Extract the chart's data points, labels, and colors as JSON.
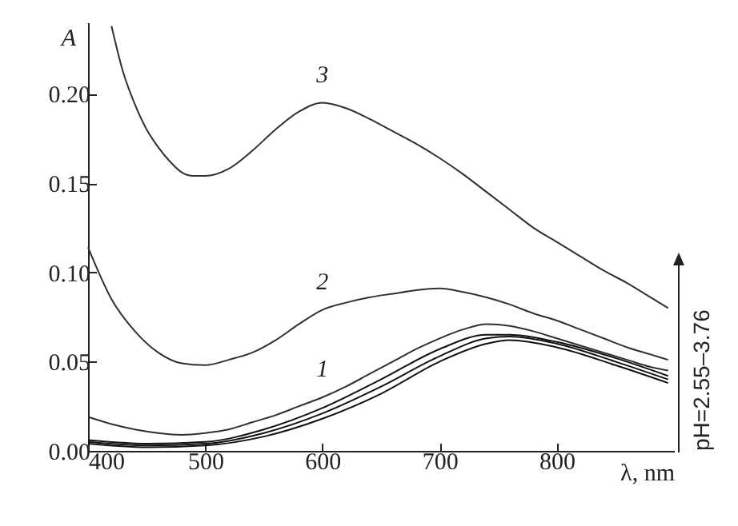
{
  "chart_data": {
    "type": "line",
    "xlabel": "λ, nm",
    "ylabel": "A",
    "xlim": [
      400,
      900
    ],
    "xticks": [
      400,
      500,
      600,
      700,
      800
    ],
    "ylim": [
      0,
      0.24
    ],
    "yticks": [
      {
        "value": 0,
        "label": "0.00"
      },
      0.05,
      {
        "value": 0.1,
        "label": "0.10"
      },
      0.15,
      {
        "value": 0.2,
        "label": "0.20"
      }
    ],
    "grid": false,
    "marker": "none",
    "line_style": "solid",
    "annotations": [
      "pH=2.55–3.76"
    ],
    "series": [
      {
        "name": "1",
        "color": "#303030",
        "x": [
          400,
          420,
          440,
          460,
          480,
          500,
          520,
          540,
          560,
          580,
          600,
          620,
          640,
          660,
          680,
          700,
          720,
          740,
          760,
          780,
          800,
          820,
          840,
          860,
          880,
          895
        ],
        "values": [
          0.019,
          0.015,
          0.012,
          0.01,
          0.009,
          0.01,
          0.012,
          0.016,
          0.02,
          0.025,
          0.03,
          0.036,
          0.043,
          0.05,
          0.057,
          0.063,
          0.068,
          0.071,
          0.07,
          0.067,
          0.063,
          0.059,
          0.055,
          0.051,
          0.047,
          0.045
        ]
      },
      {
        "name": "2",
        "color": "#303030",
        "x": [
          400,
          420,
          440,
          460,
          480,
          500,
          520,
          540,
          560,
          580,
          600,
          620,
          640,
          660,
          680,
          700,
          720,
          740,
          760,
          780,
          800,
          820,
          840,
          860,
          880,
          895
        ],
        "values": [
          0.114,
          0.085,
          0.067,
          0.055,
          0.049,
          0.048,
          0.051,
          0.055,
          0.062,
          0.071,
          0.079,
          0.083,
          0.086,
          0.088,
          0.09,
          0.091,
          0.089,
          0.086,
          0.082,
          0.077,
          0.073,
          0.068,
          0.063,
          0.058,
          0.054,
          0.051
        ]
      },
      {
        "name": "3",
        "color": "#303030",
        "x": [
          420,
          430,
          440,
          450,
          460,
          470,
          480,
          490,
          500,
          520,
          540,
          560,
          580,
          600,
          620,
          640,
          660,
          680,
          700,
          720,
          740,
          760,
          780,
          800,
          820,
          840,
          860,
          880,
          895
        ],
        "values": [
          0.238,
          0.212,
          0.194,
          0.18,
          0.17,
          0.162,
          0.156,
          0.154,
          0.154,
          0.158,
          0.168,
          0.18,
          0.19,
          0.195,
          0.192,
          0.186,
          0.179,
          0.172,
          0.164,
          0.155,
          0.145,
          0.135,
          0.125,
          0.117,
          0.109,
          0.101,
          0.094,
          0.086,
          0.08
        ]
      },
      {
        "color": "#111111",
        "x": [
          400,
          450,
          500,
          550,
          600,
          650,
          700,
          740,
          760,
          800,
          850,
          895
        ],
        "values": [
          0.004,
          0.002,
          0.003,
          0.008,
          0.018,
          0.032,
          0.05,
          0.06,
          0.062,
          0.058,
          0.048,
          0.038
        ]
      },
      {
        "color": "#111111",
        "x": [
          400,
          450,
          500,
          550,
          600,
          650,
          700,
          740,
          760,
          800,
          850,
          895
        ],
        "values": [
          0.005,
          0.003,
          0.004,
          0.01,
          0.021,
          0.036,
          0.053,
          0.063,
          0.064,
          0.06,
          0.05,
          0.04
        ]
      },
      {
        "color": "#111111",
        "x": [
          400,
          450,
          500,
          550,
          600,
          650,
          700,
          740,
          760,
          800,
          850,
          895
        ],
        "values": [
          0.006,
          0.004,
          0.005,
          0.012,
          0.024,
          0.04,
          0.057,
          0.065,
          0.065,
          0.061,
          0.052,
          0.042
        ]
      }
    ]
  }
}
